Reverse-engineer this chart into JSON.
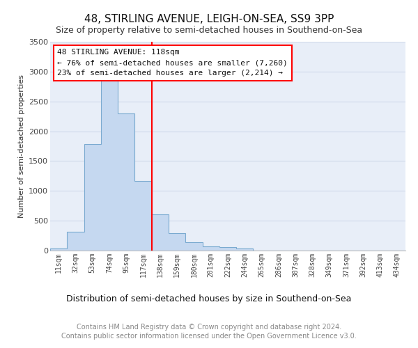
{
  "title": "48, STIRLING AVENUE, LEIGH-ON-SEA, SS9 3PP",
  "subtitle": "Size of property relative to semi-detached houses in Southend-on-Sea",
  "xlabel": "Distribution of semi-detached houses by size in Southend-on-Sea",
  "ylabel": "Number of semi-detached properties",
  "footnote1": "Contains HM Land Registry data © Crown copyright and database right 2024.",
  "footnote2": "Contains public sector information licensed under the Open Government Licence v3.0.",
  "annotation_line1": "48 STIRLING AVENUE: 118sqm",
  "annotation_line2": "← 76% of semi-detached houses are smaller (7,260)",
  "annotation_line3": "23% of semi-detached houses are larger (2,214) →",
  "bar_labels": [
    "11sqm",
    "32sqm",
    "53sqm",
    "74sqm",
    "95sqm",
    "117sqm",
    "138sqm",
    "159sqm",
    "180sqm",
    "201sqm",
    "222sqm",
    "244sqm",
    "265sqm",
    "286sqm",
    "307sqm",
    "328sqm",
    "349sqm",
    "371sqm",
    "392sqm",
    "413sqm",
    "434sqm"
  ],
  "bar_values": [
    30,
    310,
    1780,
    2920,
    2300,
    1170,
    610,
    290,
    140,
    75,
    60,
    30,
    5,
    0,
    0,
    0,
    0,
    0,
    0,
    0,
    0
  ],
  "bar_color_fill": "#c5d8f0",
  "bar_color_edge": "#7aaad0",
  "grid_color": "#d0daea",
  "bg_color": "#e8eef8",
  "red_line_index": 5,
  "ylim": [
    0,
    3500
  ],
  "yticks": [
    0,
    500,
    1000,
    1500,
    2000,
    2500,
    3000,
    3500
  ],
  "title_fontsize": 11,
  "subtitle_fontsize": 9,
  "xlabel_fontsize": 9,
  "ylabel_fontsize": 8,
  "tick_fontsize": 8,
  "annotation_fontsize": 8,
  "footnote_fontsize": 7
}
